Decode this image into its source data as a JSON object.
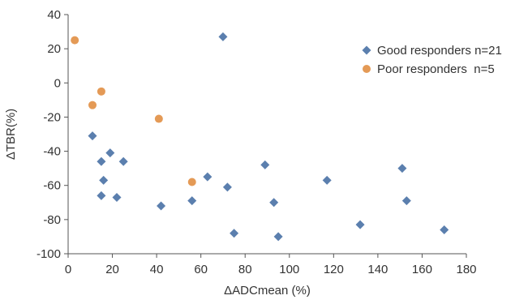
{
  "chart_data": {
    "type": "scatter",
    "title": "",
    "xlabel": "ΔADCmean (%)",
    "ylabel": "ΔTBR(%)",
    "xlim": [
      0,
      180
    ],
    "ylim": [
      -100,
      40
    ],
    "x_ticks": [
      "0",
      "20",
      "40",
      "60",
      "80",
      "100",
      "120",
      "140",
      "160",
      "180"
    ],
    "y_ticks": [
      "40",
      "20",
      "0",
      "-20",
      "-40",
      "-60",
      "-80",
      "-100"
    ],
    "grid": false,
    "legend_position": "top-right",
    "series": [
      {
        "name": "Good responders n=21",
        "marker": "diamond",
        "color": "#5b7fae",
        "points": [
          [
            70,
            27
          ],
          [
            11,
            -31
          ],
          [
            19,
            -41
          ],
          [
            15,
            -46
          ],
          [
            25,
            -46
          ],
          [
            16,
            -57
          ],
          [
            15,
            -66
          ],
          [
            22,
            -67
          ],
          [
            42,
            -72
          ],
          [
            56,
            -69
          ],
          [
            63,
            -55
          ],
          [
            72,
            -61
          ],
          [
            75,
            -88
          ],
          [
            89,
            -48
          ],
          [
            93,
            -70
          ],
          [
            95,
            -90
          ],
          [
            117,
            -57
          ],
          [
            132,
            -83
          ],
          [
            151,
            -50
          ],
          [
            153,
            -69
          ],
          [
            170,
            -86
          ]
        ]
      },
      {
        "name": "Poor responders  n=5",
        "marker": "circle",
        "color": "#e49a56",
        "points": [
          [
            3,
            25
          ],
          [
            15,
            -5
          ],
          [
            11,
            -13
          ],
          [
            41,
            -21
          ],
          [
            56,
            -58
          ]
        ]
      }
    ]
  }
}
